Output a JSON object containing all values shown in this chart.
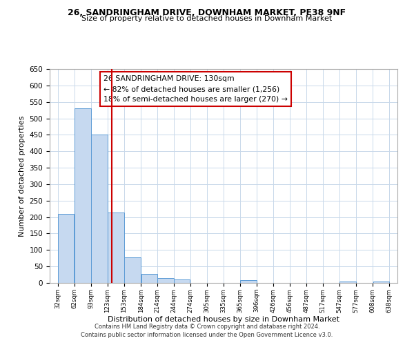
{
  "title1": "26, SANDRINGHAM DRIVE, DOWNHAM MARKET, PE38 9NF",
  "title2": "Size of property relative to detached houses in Downham Market",
  "xlabel": "Distribution of detached houses by size in Downham Market",
  "ylabel": "Number of detached properties",
  "bar_edges": [
    32,
    62,
    93,
    123,
    153,
    184,
    214,
    244,
    274,
    305,
    335,
    365,
    396,
    426,
    456,
    487,
    517,
    547,
    577,
    608,
    638
  ],
  "bar_heights": [
    210,
    530,
    450,
    213,
    78,
    27,
    15,
    10,
    0,
    0,
    0,
    8,
    0,
    0,
    0,
    0,
    0,
    5,
    0,
    5
  ],
  "bar_color": "#c6d9f0",
  "bar_edge_color": "#5b9bd5",
  "vline_x": 130,
  "vline_color": "#cc0000",
  "ylim": [
    0,
    650
  ],
  "yticks": [
    0,
    50,
    100,
    150,
    200,
    250,
    300,
    350,
    400,
    450,
    500,
    550,
    600,
    650
  ],
  "xtick_labels": [
    "32sqm",
    "62sqm",
    "93sqm",
    "123sqm",
    "153sqm",
    "184sqm",
    "214sqm",
    "244sqm",
    "274sqm",
    "305sqm",
    "335sqm",
    "365sqm",
    "396sqm",
    "426sqm",
    "456sqm",
    "487sqm",
    "517sqm",
    "547sqm",
    "577sqm",
    "608sqm",
    "638sqm"
  ],
  "annotation_box_text": "26 SANDRINGHAM DRIVE: 130sqm\n← 82% of detached houses are smaller (1,256)\n18% of semi-detached houses are larger (270) →",
  "footnote1": "Contains HM Land Registry data © Crown copyright and database right 2024.",
  "footnote2": "Contains public sector information licensed under the Open Government Licence v3.0.",
  "bg_color": "#ffffff",
  "grid_color": "#c8d8ea"
}
